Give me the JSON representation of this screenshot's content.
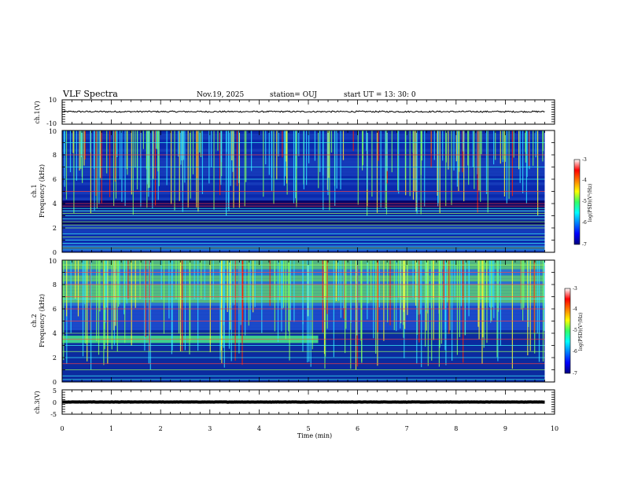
{
  "header": {
    "title": "VLF Spectra",
    "date": "Nov.19, 2025",
    "station": "station= OUJ",
    "start_ut": "start  UT  =   13: 30: 0"
  },
  "chart_data": [
    {
      "type": "line",
      "id": "waveform-ch1",
      "ylabel": "ch.1(V)",
      "ylim": [
        -10,
        10
      ],
      "ytick_labels": [
        "10",
        "-10"
      ],
      "xlim": [
        0,
        10
      ],
      "data_end_min": 9.8,
      "level_v": 0.3,
      "noise_v": 0.6,
      "colors": {
        "line": "#000000"
      }
    },
    {
      "type": "heatmap",
      "id": "spectrogram-ch1",
      "ylabel_top": "ch.1",
      "ylabel": "Frequency (kHz)",
      "ylim": [
        0,
        10
      ],
      "ytick_labels": [
        "0",
        "2",
        "4",
        "6",
        "8",
        "10"
      ],
      "xlim": [
        0,
        10
      ],
      "data_end_min": 9.8,
      "colorbar": {
        "label": "log(PSD)(V²/Hz)",
        "range": [
          -7,
          -3
        ],
        "tick_labels": [
          "-3",
          "-4",
          "-5",
          "-6",
          "-7"
        ]
      },
      "colors": {
        "low": "#000080",
        "mid": "#00e0ff",
        "high": "#ff0000"
      },
      "hum_lines_khz": [
        0.2,
        0.35,
        0.5,
        0.75,
        1.0,
        1.25,
        1.5,
        2.0,
        2.25,
        2.5,
        2.75,
        3.0,
        3.2,
        3.4,
        3.6,
        3.8,
        4.0,
        5.0,
        6.0,
        7.0,
        8.0,
        9.0
      ]
    },
    {
      "type": "heatmap",
      "id": "spectrogram-ch2",
      "ylabel_top": "ch.2",
      "ylabel": "Frequency (kHz)",
      "ylim": [
        0,
        10
      ],
      "ytick_labels": [
        "0",
        "2",
        "4",
        "6",
        "8",
        "10"
      ],
      "xlim": [
        0,
        10
      ],
      "data_end_min": 9.8,
      "colorbar": {
        "label": "log(PSD)(V²/Hz)",
        "range": [
          -7,
          -3
        ],
        "tick_labels": [
          "-3",
          "-4",
          "-5",
          "-6",
          "-7"
        ]
      },
      "colors": {
        "low": "#000080",
        "mid": "#00e0ff",
        "high": "#ff0000"
      },
      "band_khz": [
        3.2,
        3.8
      ],
      "band_end_min": 5.2,
      "hum_lines_khz": [
        0.2,
        0.5,
        1.0,
        1.5,
        2.0,
        2.5,
        3.0,
        3.5,
        4.0,
        5.0,
        6.0,
        6.8,
        7.0,
        8.0,
        9.0,
        9.6
      ]
    },
    {
      "type": "line",
      "id": "waveform-ch3",
      "ylabel": "ch.3(V)",
      "ylim": [
        -5,
        5
      ],
      "ytick_labels": [
        "5",
        "0",
        "-5"
      ],
      "xlim": [
        0,
        10
      ],
      "data_end_min": 9.8,
      "level_v": 0.0,
      "noise_v": 0.05,
      "colors": {
        "line": "#000000"
      }
    }
  ],
  "x_axis": {
    "label": "Time (min)",
    "tick_labels": [
      "0",
      "1",
      "2",
      "3",
      "4",
      "5",
      "6",
      "7",
      "8",
      "9",
      "10"
    ]
  }
}
